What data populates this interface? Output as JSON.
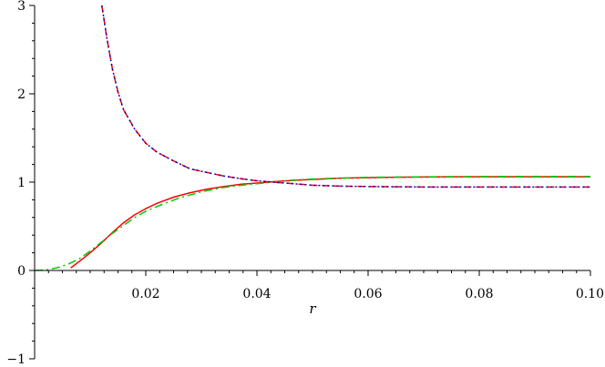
{
  "chart_data": {
    "type": "line",
    "title": "",
    "xlabel": "r",
    "ylabel": "",
    "xlim": [
      0,
      0.1
    ],
    "ylim": [
      -1,
      3
    ],
    "grid": false,
    "legend": "none",
    "x_ticks": [
      {
        "value": 0.02,
        "label": "0.02"
      },
      {
        "value": 0.04,
        "label": "0.04"
      },
      {
        "value": 0.06,
        "label": "0.06"
      },
      {
        "value": 0.08,
        "label": "0.08"
      },
      {
        "value": 0.1,
        "label": "0.10"
      }
    ],
    "x_minor_step": 0.0025,
    "y_ticks": [
      {
        "value": -1,
        "label": "−1"
      },
      {
        "value": 0,
        "label": "0"
      },
      {
        "value": 1,
        "label": "1"
      },
      {
        "value": 2,
        "label": "2"
      },
      {
        "value": 3,
        "label": "3"
      }
    ],
    "y_minor_step": 0.2,
    "series": [
      {
        "color": "#ff0000",
        "dash": "solid",
        "points": [
          [
            0.0065,
            0.03
          ],
          [
            0.008,
            0.1
          ],
          [
            0.01,
            0.2
          ],
          [
            0.012,
            0.31
          ],
          [
            0.014,
            0.43
          ],
          [
            0.016,
            0.54
          ],
          [
            0.018,
            0.63
          ],
          [
            0.02,
            0.7
          ],
          [
            0.022,
            0.76
          ],
          [
            0.025,
            0.83
          ],
          [
            0.028,
            0.88
          ],
          [
            0.031,
            0.92
          ],
          [
            0.034,
            0.95
          ],
          [
            0.037,
            0.975
          ],
          [
            0.04,
            0.99
          ],
          [
            0.044,
            1.01
          ],
          [
            0.048,
            1.025
          ],
          [
            0.055,
            1.045
          ],
          [
            0.065,
            1.055
          ],
          [
            0.075,
            1.06
          ],
          [
            0.085,
            1.06
          ],
          [
            0.1,
            1.06
          ]
        ]
      },
      {
        "color": "#00cc00",
        "dash": "dashdot",
        "points": [
          [
            0.0,
            0.0
          ],
          [
            0.002,
            0.005
          ],
          [
            0.004,
            0.03
          ],
          [
            0.006,
            0.07
          ],
          [
            0.008,
            0.13
          ],
          [
            0.01,
            0.22
          ],
          [
            0.012,
            0.32
          ],
          [
            0.014,
            0.42
          ],
          [
            0.016,
            0.51
          ],
          [
            0.018,
            0.6
          ],
          [
            0.02,
            0.67
          ],
          [
            0.023,
            0.75
          ],
          [
            0.026,
            0.82
          ],
          [
            0.03,
            0.89
          ],
          [
            0.034,
            0.94
          ],
          [
            0.038,
            0.97
          ],
          [
            0.042,
            0.995
          ],
          [
            0.046,
            1.02
          ],
          [
            0.05,
            1.035
          ],
          [
            0.06,
            1.055
          ],
          [
            0.07,
            1.06
          ],
          [
            0.085,
            1.065
          ],
          [
            0.1,
            1.065
          ]
        ]
      },
      {
        "color": "#ff0000",
        "dash": "dash",
        "points": [
          [
            0.0121,
            3.0
          ],
          [
            0.013,
            2.63
          ],
          [
            0.014,
            2.28
          ],
          [
            0.015,
            2.02
          ],
          [
            0.016,
            1.82
          ],
          [
            0.018,
            1.6
          ],
          [
            0.02,
            1.44
          ],
          [
            0.022,
            1.34
          ],
          [
            0.025,
            1.24
          ],
          [
            0.028,
            1.15
          ],
          [
            0.031,
            1.11
          ],
          [
            0.034,
            1.07
          ],
          [
            0.037,
            1.04
          ],
          [
            0.04,
            1.015
          ],
          [
            0.043,
            1.0
          ],
          [
            0.047,
            0.98
          ],
          [
            0.05,
            0.965
          ],
          [
            0.055,
            0.955
          ],
          [
            0.06,
            0.95
          ],
          [
            0.07,
            0.945
          ],
          [
            0.08,
            0.945
          ],
          [
            0.1,
            0.945
          ]
        ]
      },
      {
        "color": "#0000cc",
        "dash": "dot",
        "points": [
          [
            0.0121,
            3.0
          ],
          [
            0.013,
            2.63
          ],
          [
            0.014,
            2.28
          ],
          [
            0.015,
            2.02
          ],
          [
            0.016,
            1.82
          ],
          [
            0.018,
            1.6
          ],
          [
            0.02,
            1.44
          ],
          [
            0.022,
            1.34
          ],
          [
            0.025,
            1.24
          ],
          [
            0.028,
            1.15
          ],
          [
            0.031,
            1.11
          ],
          [
            0.034,
            1.07
          ],
          [
            0.037,
            1.04
          ],
          [
            0.04,
            1.015
          ],
          [
            0.043,
            1.0
          ],
          [
            0.047,
            0.98
          ],
          [
            0.05,
            0.965
          ],
          [
            0.055,
            0.955
          ],
          [
            0.06,
            0.95
          ],
          [
            0.07,
            0.945
          ],
          [
            0.08,
            0.945
          ],
          [
            0.1,
            0.945
          ]
        ]
      }
    ]
  }
}
